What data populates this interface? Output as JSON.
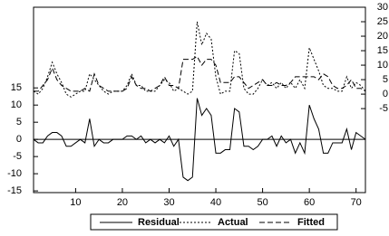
{
  "chart_data": {
    "type": "line",
    "x": [
      1,
      2,
      3,
      4,
      5,
      6,
      7,
      8,
      9,
      10,
      11,
      12,
      13,
      14,
      15,
      16,
      17,
      18,
      19,
      20,
      21,
      22,
      23,
      24,
      25,
      26,
      27,
      28,
      29,
      30,
      31,
      32,
      33,
      34,
      35,
      36,
      37,
      38,
      39,
      40,
      41,
      42,
      43,
      44,
      45,
      46,
      47,
      48,
      49,
      50,
      51,
      52,
      53,
      54,
      55,
      56,
      57,
      58,
      59,
      60,
      61,
      62,
      63,
      64,
      65,
      66,
      67,
      68,
      69,
      70,
      71,
      72
    ],
    "xlim": [
      1,
      72
    ],
    "xticks": [
      10,
      20,
      30,
      40,
      50,
      60,
      70
    ],
    "ylim": [
      -15.5,
      38.5
    ],
    "yticks": [
      -15,
      -10,
      -5,
      0,
      5,
      10,
      15
    ],
    "y2lim": [
      -34,
      30
    ],
    "y2ticks": [
      -5,
      0,
      5,
      10,
      15,
      20,
      25,
      30
    ],
    "series": [
      {
        "name": "Residual",
        "color": "#000000",
        "dash": "solid",
        "axis": "y",
        "values": [
          0,
          -1,
          -1,
          1,
          2,
          2,
          1,
          -2,
          -2,
          -1,
          0,
          -1,
          6,
          -2,
          0,
          -1,
          -1,
          0,
          0,
          0,
          1,
          1,
          0,
          1,
          -1,
          0,
          -1,
          0,
          -1,
          1,
          -2,
          0,
          -11,
          -12,
          -11,
          12,
          7,
          9,
          7,
          -4,
          -4,
          -3,
          -3,
          9,
          8,
          -2,
          -2,
          -3,
          -2,
          0,
          0,
          1,
          -2,
          1,
          -1,
          0,
          -4,
          -1,
          -4,
          10,
          6,
          3,
          -4,
          -4,
          -1,
          -1,
          -1,
          3,
          -3,
          2,
          1,
          0
        ]
      },
      {
        "name": "Actual",
        "color": "#000000",
        "dash": "dotted",
        "axis": "y2",
        "values": [
          1,
          0,
          2,
          6,
          11,
          7,
          4,
          0,
          -1,
          0,
          1,
          1,
          7,
          5,
          3,
          1,
          0,
          1,
          1,
          1,
          3,
          7,
          3,
          3,
          1,
          1,
          1,
          3,
          5,
          4,
          1,
          2,
          1,
          0,
          1,
          25,
          17,
          21,
          19,
          6,
          0,
          1,
          1,
          15,
          14,
          2,
          0,
          0,
          2,
          5,
          3,
          4,
          2,
          4,
          2,
          4,
          2,
          5,
          2,
          16,
          12,
          8,
          3,
          2,
          2,
          1,
          1,
          6,
          2,
          4,
          3,
          1
        ]
      },
      {
        "name": "Fitted",
        "color": "#000000",
        "dash": "dashed",
        "axis": "y2",
        "values": [
          1,
          1,
          3,
          5,
          9,
          5,
          3,
          2,
          1,
          1,
          1,
          2,
          1,
          7,
          3,
          2,
          1,
          1,
          1,
          1,
          2,
          6,
          3,
          2,
          2,
          1,
          2,
          3,
          6,
          3,
          3,
          2,
          12,
          12,
          12,
          13,
          10,
          12,
          12,
          10,
          4,
          4,
          4,
          6,
          6,
          4,
          2,
          3,
          4,
          5,
          3,
          3,
          4,
          3,
          3,
          4,
          6,
          6,
          6,
          6,
          6,
          5,
          7,
          6,
          3,
          2,
          2,
          3,
          5,
          2,
          2,
          1
        ]
      }
    ]
  }
}
